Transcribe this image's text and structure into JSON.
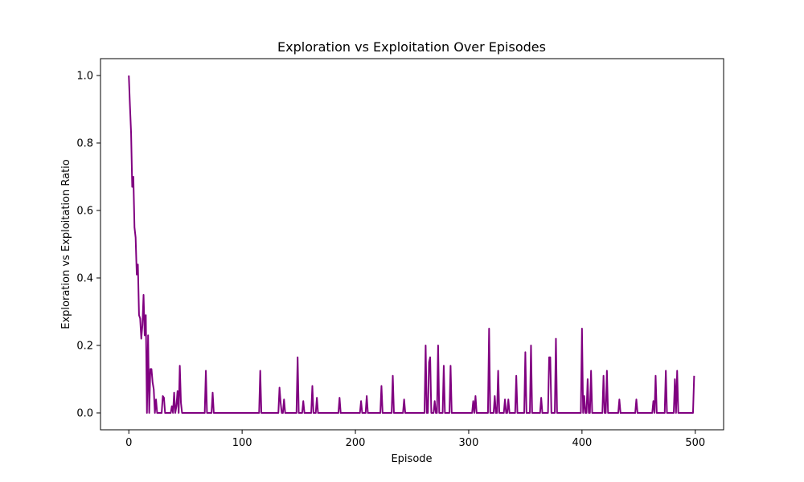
{
  "chart_data": {
    "type": "line",
    "title": "Exploration vs Exploitation Over Episodes",
    "x_label": "Episode",
    "y_label": "Exploration vs Exploitation Ratio",
    "xlim": [
      -25,
      525
    ],
    "ylim": [
      -0.05,
      1.05
    ],
    "xticks": [
      0,
      100,
      200,
      300,
      400,
      500
    ],
    "yticks": [
      {
        "value": 0,
        "label": "0.0"
      },
      0.2,
      0.4,
      0.6,
      0.8,
      {
        "value": 1,
        "label": "1.0"
      }
    ],
    "grid": false,
    "x": [
      0,
      1,
      2,
      3,
      4,
      5,
      6,
      7,
      8,
      9,
      10,
      11,
      12,
      13,
      14,
      15,
      16,
      17,
      18,
      19,
      20,
      21,
      22,
      23,
      24,
      25,
      29,
      30,
      31,
      32,
      37,
      38,
      39,
      40,
      41,
      42,
      43,
      44,
      45,
      46,
      47,
      67,
      68,
      69,
      73,
      74,
      75,
      115,
      116,
      117,
      132,
      133,
      134,
      135,
      136,
      137,
      138,
      148,
      149,
      150,
      153,
      154,
      155,
      161,
      162,
      163,
      165,
      166,
      167,
      185,
      186,
      187,
      204,
      205,
      206,
      209,
      210,
      211,
      222,
      223,
      224,
      232,
      233,
      234,
      242,
      243,
      244,
      261,
      262,
      263,
      264,
      265,
      266,
      267,
      269,
      270,
      271,
      272,
      273,
      274,
      277,
      278,
      279,
      283,
      284,
      285,
      303,
      304,
      305,
      306,
      307,
      317,
      318,
      319,
      322,
      323,
      324,
      325,
      326,
      327,
      331,
      332,
      333,
      334,
      335,
      336,
      341,
      342,
      343,
      349,
      350,
      351,
      354,
      355,
      356,
      363,
      364,
      365,
      370,
      371,
      372,
      373,
      376,
      377,
      378,
      399,
      400,
      401,
      402,
      403,
      404,
      405,
      406,
      407,
      408,
      409,
      418,
      419,
      420,
      421,
      422,
      423,
      432,
      433,
      434,
      447,
      448,
      449,
      462,
      463,
      464,
      465,
      466,
      473,
      474,
      475,
      481,
      482,
      483,
      484,
      485,
      498,
      499
    ],
    "series": [
      {
        "name": "Exploration vs Exploitation Ratio",
        "color": "#800080",
        "values": [
          1.0,
          0.91,
          0.83,
          0.67,
          0.7,
          0.55,
          0.52,
          0.41,
          0.44,
          0.29,
          0.28,
          0.22,
          0.26,
          0.35,
          0.23,
          0.29,
          0,
          0.23,
          0,
          0.13,
          0.13,
          0.09,
          0.07,
          0,
          0.04,
          0,
          0,
          0.05,
          0.045,
          0,
          0,
          0.02,
          0,
          0.06,
          0,
          0.02,
          0.065,
          0,
          0.14,
          0.03,
          0,
          0,
          0.125,
          0,
          0,
          0.06,
          0,
          0,
          0.125,
          0,
          0,
          0.075,
          0.03,
          0,
          0,
          0.04,
          0,
          0,
          0.165,
          0,
          0,
          0.035,
          0,
          0,
          0.08,
          0,
          0,
          0.045,
          0,
          0,
          0.045,
          0,
          0,
          0.035,
          0,
          0,
          0.05,
          0,
          0,
          0.08,
          0,
          0,
          0.11,
          0,
          0,
          0.04,
          0,
          0,
          0.2,
          0,
          0,
          0.15,
          0.165,
          0,
          0,
          0.035,
          0,
          0,
          0.2,
          0,
          0,
          0.14,
          0,
          0,
          0.14,
          0,
          0,
          0.035,
          0,
          0.05,
          0,
          0,
          0.25,
          0,
          0,
          0.05,
          0,
          0,
          0.125,
          0,
          0,
          0.04,
          0,
          0,
          0.04,
          0,
          0,
          0.11,
          0,
          0,
          0.18,
          0,
          0,
          0.2,
          0,
          0,
          0.045,
          0,
          0,
          0.165,
          0.165,
          0,
          0,
          0.22,
          0,
          0,
          0.25,
          0,
          0.05,
          0,
          0,
          0.1,
          0,
          0,
          0.125,
          0,
          0,
          0.11,
          0,
          0,
          0.125,
          0,
          0,
          0.04,
          0,
          0,
          0.04,
          0,
          0,
          0.035,
          0,
          0.11,
          0,
          0,
          0.125,
          0,
          0,
          0.1,
          0,
          0.125,
          0,
          0,
          0.11
        ]
      }
    ]
  }
}
